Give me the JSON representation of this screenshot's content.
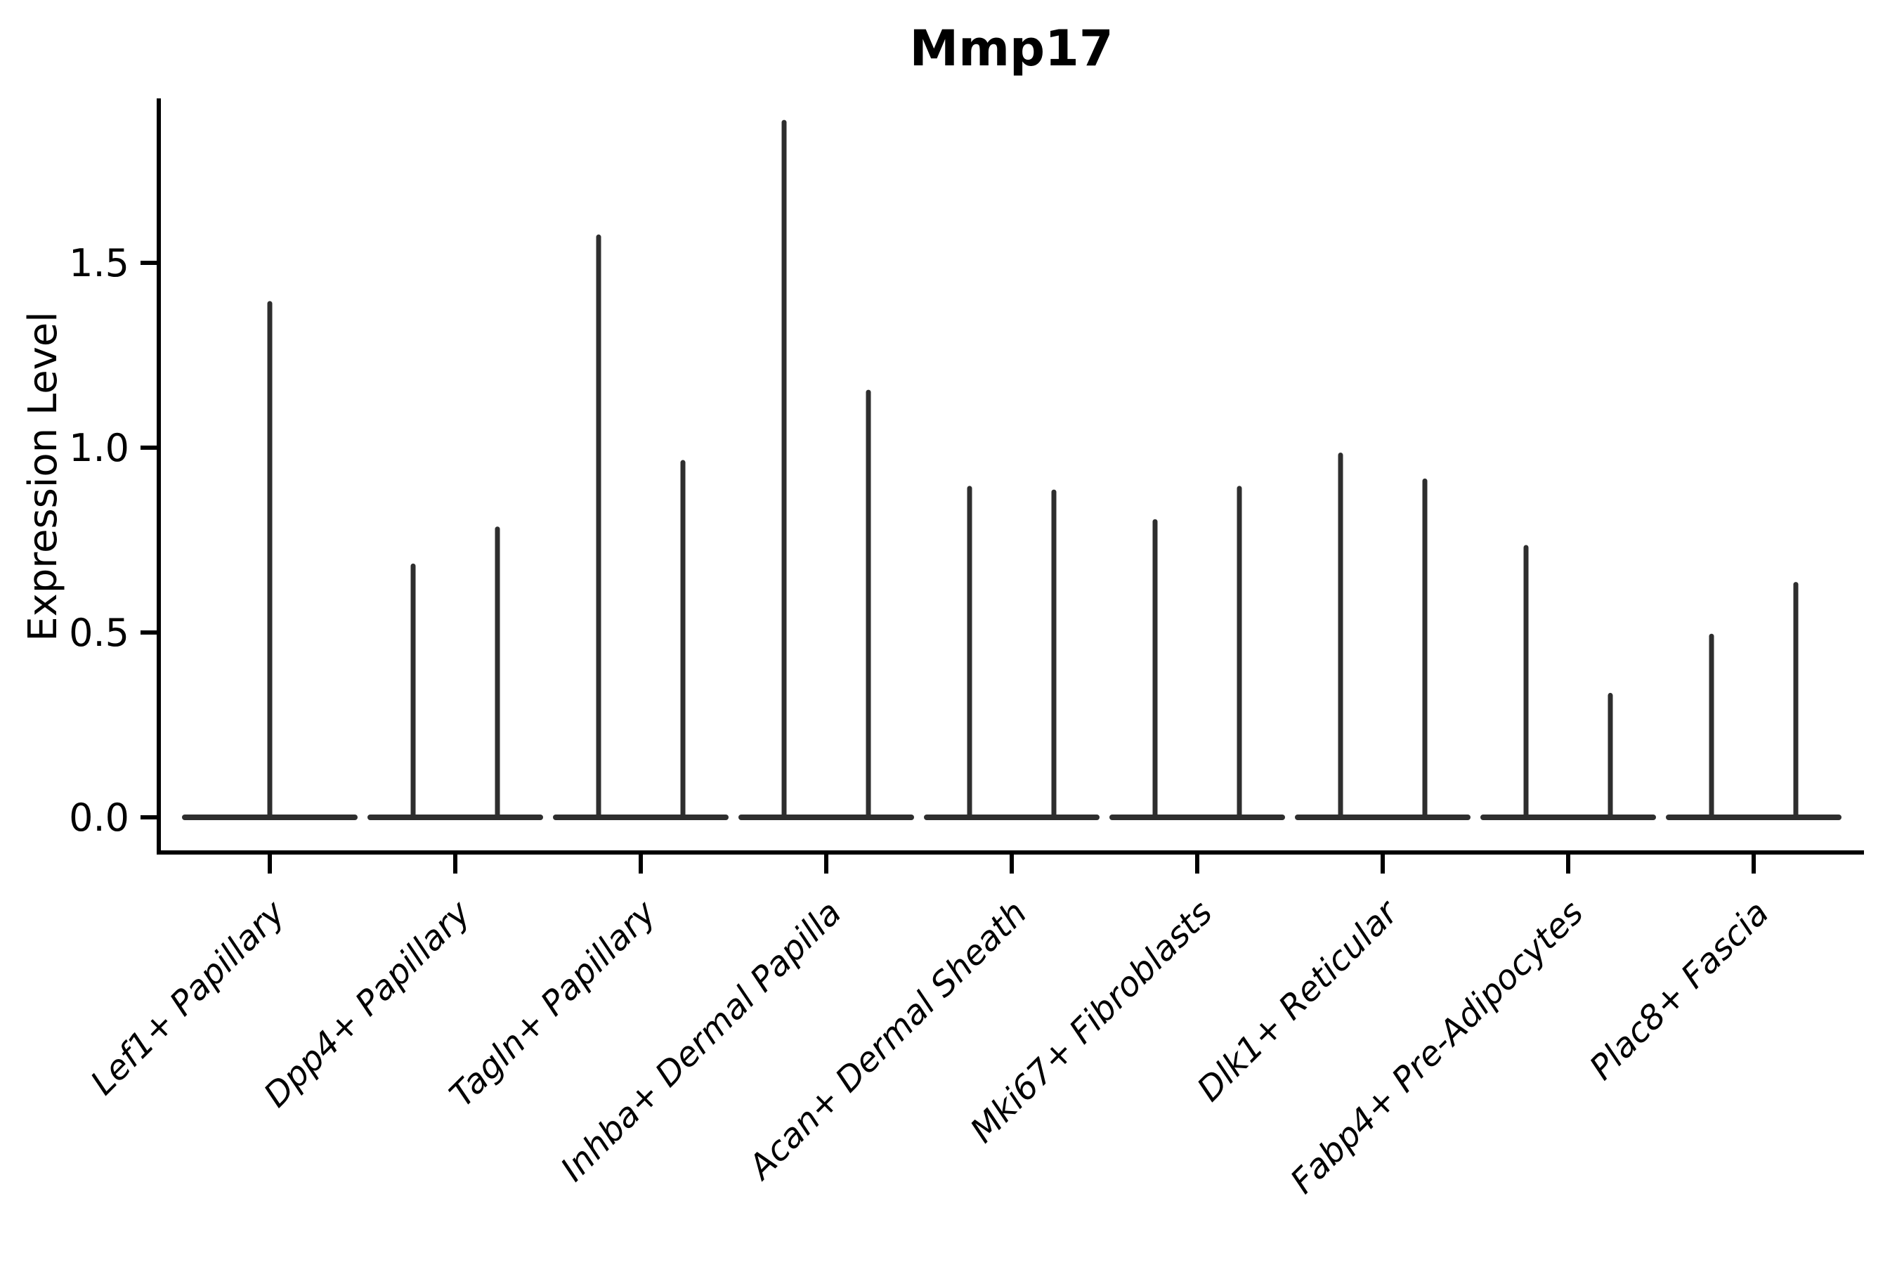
{
  "chart_data": {
    "type": "violin",
    "title": "Mmp17",
    "ylabel": "Expression Level",
    "xlabel": "",
    "grid": false,
    "legend": "none",
    "ylim": [
      0,
      1.95
    ],
    "ytick_values": [
      0,
      0.5,
      1.0,
      1.5
    ],
    "ytick_labels": [
      "0.0",
      "0.5",
      "1.0",
      "1.5"
    ],
    "categories": [
      "Lef1+ Papillary",
      "Dpp4+ Papillary",
      "Tagln+ Papillary",
      "Inhba+ Dermal Papilla",
      "Acan+ Dermal Sheath",
      "Mki67+ Fibroblasts",
      "Dlk1+ Reticular",
      "Fabp4+ Pre-Adipocytes",
      "Plac8+ Fascia"
    ],
    "violins": [
      {
        "category": "Lef1+ Papillary",
        "peak_expression": [
          1.39
        ]
      },
      {
        "category": "Dpp4+ Papillary",
        "peak_expression": [
          0.68,
          0.78
        ]
      },
      {
        "category": "Tagln+ Papillary",
        "peak_expression": [
          1.57,
          0.96
        ]
      },
      {
        "category": "Inhba+ Dermal Papilla",
        "peak_expression": [
          1.88,
          1.15
        ]
      },
      {
        "category": "Acan+ Dermal Sheath",
        "peak_expression": [
          0.89,
          0.88
        ]
      },
      {
        "category": "Mki67+ Fibroblasts",
        "peak_expression": [
          0.8,
          0.89
        ]
      },
      {
        "category": "Dlk1+ Reticular",
        "peak_expression": [
          0.98,
          0.91
        ]
      },
      {
        "category": "Fabp4+ Pre-Adipocytes",
        "peak_expression": [
          0.73,
          0.33
        ]
      },
      {
        "category": "Plac8+ Fascia",
        "peak_expression": [
          0.49,
          0.63
        ]
      }
    ],
    "baseline_value": 0.0,
    "colors": {
      "violin_line": "#2e2e2e",
      "axis": "#000000",
      "background": "#ffffff"
    }
  }
}
